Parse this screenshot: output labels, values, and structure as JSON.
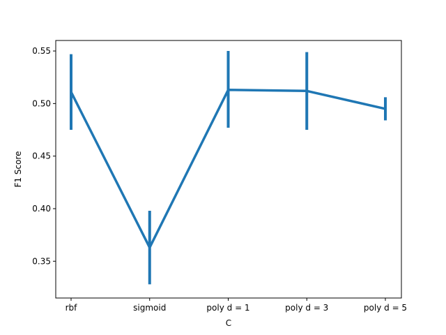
{
  "chart_data": {
    "type": "line",
    "title": "",
    "xlabel": "C",
    "ylabel": "F1 Score",
    "categories": [
      "rbf",
      "sigmoid",
      "poly d = 1",
      "poly d = 3",
      "poly d = 5"
    ],
    "series": [
      {
        "values": [
          0.511,
          0.363,
          0.513,
          0.512,
          0.495
        ],
        "error_low": [
          0.475,
          0.328,
          0.477,
          0.475,
          0.484
        ],
        "error_high": [
          0.547,
          0.398,
          0.55,
          0.549,
          0.506
        ],
        "color": "#1f77b4"
      }
    ],
    "ylim": [
      0.315,
      0.56
    ],
    "yticks": [
      0.35,
      0.4,
      0.45,
      0.5,
      0.55
    ],
    "ytick_labels": [
      "0.35",
      "0.40",
      "0.45",
      "0.50",
      "0.55"
    ],
    "grid": false,
    "legend": "none"
  }
}
